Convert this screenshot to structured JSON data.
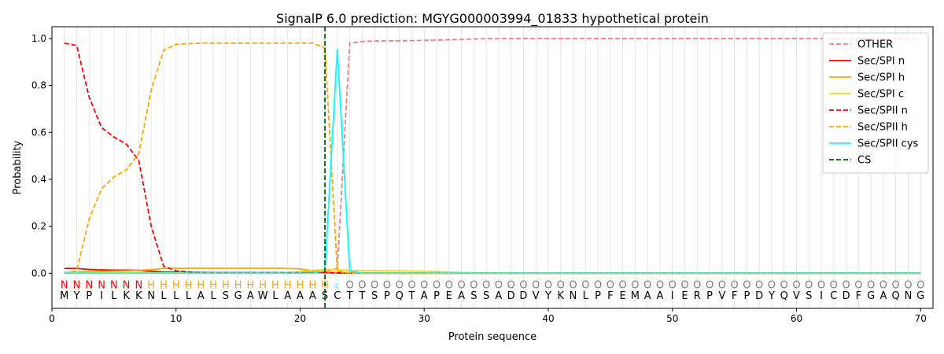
{
  "chart_data": {
    "type": "line",
    "title": "SignalP 6.0 prediction: MGYG000003994_01833 hypothetical protein",
    "xlabel": "Protein sequence",
    "ylabel": "Probability",
    "xlim": [
      0,
      71
    ],
    "ylim": [
      -0.15,
      1.05
    ],
    "x_ticks": [
      0,
      10,
      20,
      30,
      40,
      50,
      60,
      70
    ],
    "y_ticks": [
      0.0,
      0.2,
      0.4,
      0.6,
      0.8,
      1.0
    ],
    "x_tick_labels": [
      "0",
      "10",
      "20",
      "30",
      "40",
      "50",
      "60",
      "70"
    ],
    "y_tick_labels": [
      "0.0",
      "0.2",
      "0.4",
      "0.6",
      "0.8",
      "1.0"
    ],
    "grid": "vertical lines at each residue",
    "legend_position": "top-right",
    "sequence": [
      "M",
      "Y",
      "P",
      "I",
      "L",
      "K",
      "K",
      "N",
      "L",
      "L",
      "L",
      "A",
      "L",
      "S",
      "G",
      "A",
      "W",
      "L",
      "A",
      "A",
      "A",
      "S",
      "C",
      "T",
      "T",
      "S",
      "P",
      "Q",
      "T",
      "A",
      "P",
      "E",
      "A",
      "S",
      "S",
      "A",
      "D",
      "D",
      "V",
      "Y",
      "K",
      "N",
      "L",
      "P",
      "F",
      "E",
      "M",
      "A",
      "A",
      "I",
      "E",
      "R",
      "P",
      "V",
      "F",
      "P",
      "D",
      "Y",
      "Q",
      "V",
      "S",
      "I",
      "C",
      "D",
      "F",
      "G",
      "A",
      "Q",
      "N",
      "G"
    ],
    "labels": [
      "N",
      "N",
      "N",
      "N",
      "N",
      "N",
      "N",
      "H",
      "H",
      "H",
      "H",
      "H",
      "H",
      "H",
      "H",
      "H",
      "H",
      "H",
      "H",
      "H",
      "H",
      "H",
      "C",
      "O",
      "O",
      "O",
      "O",
      "O",
      "O",
      "O",
      "O",
      "O",
      "O",
      "O",
      "O",
      "O",
      "O",
      "O",
      "O",
      "O",
      "O",
      "O",
      "O",
      "O",
      "O",
      "O",
      "O",
      "O",
      "O",
      "O",
      "O",
      "O",
      "O",
      "O",
      "O",
      "O",
      "O",
      "O",
      "O",
      "O",
      "O",
      "O",
      "O",
      "O",
      "O",
      "O",
      "O",
      "O",
      "O",
      "O"
    ],
    "label_colors": {
      "N": "#ff0000",
      "H": "#ffa500",
      "C": "#00ffff",
      "O": "#808080"
    },
    "cleavage_site": 22,
    "series": [
      {
        "name": "OTHER",
        "color": "#f08080",
        "dash": "dashed",
        "values": [
          0.002,
          0.002,
          0.002,
          0.002,
          0.002,
          0.002,
          0.002,
          0.002,
          0.002,
          0.002,
          0.002,
          0.002,
          0.002,
          0.002,
          0.002,
          0.002,
          0.002,
          0.002,
          0.002,
          0.002,
          0.002,
          0.005,
          0.02,
          0.98,
          0.987,
          0.989,
          0.99,
          0.99,
          0.991,
          0.992,
          0.993,
          0.995,
          0.996,
          0.998,
          0.999,
          0.999,
          1.0,
          1.0,
          1.0,
          1.0,
          1.0,
          1.0,
          1.0,
          1.0,
          1.0,
          1.0,
          1.0,
          1.0,
          1.0,
          1.0,
          1.0,
          1.0,
          1.0,
          1.0,
          1.0,
          1.0,
          1.0,
          1.0,
          1.0,
          1.0,
          1.0,
          1.0,
          1.0,
          1.0,
          1.0,
          1.0,
          1.0,
          1.0,
          1.0,
          1.0
        ]
      },
      {
        "name": "Sec/SPI n",
        "color": "#ff0000",
        "dash": "solid",
        "values": [
          0.02,
          0.02,
          0.016,
          0.014,
          0.013,
          0.013,
          0.012,
          0.008,
          0.005,
          0.004,
          0.003,
          0.003,
          0.002,
          0.002,
          0.002,
          0.002,
          0.002,
          0.002,
          0.002,
          0.002,
          0.002,
          0.002,
          0.001,
          0.0,
          0.0,
          0.0,
          0.0,
          0.0,
          0.0,
          0.0,
          0.0,
          0.0,
          0.0,
          0.0,
          0.0,
          0.0,
          0.0,
          0.0,
          0.0,
          0.0,
          0.0,
          0.0,
          0.0,
          0.0,
          0.0,
          0.0,
          0.0,
          0.0,
          0.0,
          0.0,
          0.0,
          0.0,
          0.0,
          0.0,
          0.0,
          0.0,
          0.0,
          0.0,
          0.0,
          0.0,
          0.0,
          0.0,
          0.0,
          0.0,
          0.0,
          0.0,
          0.0,
          0.0,
          0.0,
          0.0
        ]
      },
      {
        "name": "Sec/SPI h",
        "color": "#ffa500",
        "dash": "solid",
        "values": [
          0.003,
          0.005,
          0.007,
          0.008,
          0.009,
          0.01,
          0.012,
          0.015,
          0.02,
          0.021,
          0.021,
          0.021,
          0.021,
          0.021,
          0.021,
          0.021,
          0.021,
          0.021,
          0.02,
          0.018,
          0.01,
          0.005,
          0.003,
          0.002,
          0.001,
          0.001,
          0.001,
          0.0,
          0.0,
          0.0,
          0.0,
          0.0,
          0.0,
          0.0,
          0.0,
          0.0,
          0.0,
          0.0,
          0.0,
          0.0,
          0.0,
          0.0,
          0.0,
          0.0,
          0.0,
          0.0,
          0.0,
          0.0,
          0.0,
          0.0,
          0.0,
          0.0,
          0.0,
          0.0,
          0.0,
          0.0,
          0.0,
          0.0,
          0.0,
          0.0,
          0.0,
          0.0,
          0.0,
          0.0,
          0.0,
          0.0,
          0.0,
          0.0,
          0.0,
          0.0
        ]
      },
      {
        "name": "Sec/SPI c",
        "color": "#ffd700",
        "dash": "solid",
        "values": [
          0.001,
          0.001,
          0.001,
          0.001,
          0.001,
          0.001,
          0.001,
          0.001,
          0.001,
          0.001,
          0.001,
          0.001,
          0.001,
          0.001,
          0.001,
          0.001,
          0.002,
          0.002,
          0.003,
          0.005,
          0.012,
          0.015,
          0.014,
          0.012,
          0.011,
          0.011,
          0.01,
          0.01,
          0.009,
          0.008,
          0.007,
          0.005,
          0.003,
          0.002,
          0.001,
          0.001,
          0.0,
          0.0,
          0.0,
          0.0,
          0.0,
          0.0,
          0.0,
          0.0,
          0.0,
          0.0,
          0.0,
          0.0,
          0.0,
          0.0,
          0.0,
          0.0,
          0.0,
          0.0,
          0.0,
          0.0,
          0.0,
          0.0,
          0.0,
          0.0,
          0.0,
          0.0,
          0.0,
          0.0,
          0.0,
          0.0,
          0.0,
          0.0,
          0.0,
          0.0
        ]
      },
      {
        "name": "Sec/SPII n",
        "color": "#ff0000",
        "dash": "dashed",
        "values": [
          0.98,
          0.97,
          0.75,
          0.62,
          0.58,
          0.55,
          0.48,
          0.2,
          0.03,
          0.01,
          0.005,
          0.003,
          0.002,
          0.002,
          0.002,
          0.002,
          0.002,
          0.002,
          0.002,
          0.002,
          0.002,
          0.002,
          0.001,
          0.0,
          0.0,
          0.0,
          0.0,
          0.0,
          0.0,
          0.0,
          0.0,
          0.0,
          0.0,
          0.0,
          0.0,
          0.0,
          0.0,
          0.0,
          0.0,
          0.0,
          0.0,
          0.0,
          0.0,
          0.0,
          0.0,
          0.0,
          0.0,
          0.0,
          0.0,
          0.0,
          0.0,
          0.0,
          0.0,
          0.0,
          0.0,
          0.0,
          0.0,
          0.0,
          0.0,
          0.0,
          0.0,
          0.0,
          0.0,
          0.0,
          0.0,
          0.0,
          0.0,
          0.0,
          0.0,
          0.0
        ]
      },
      {
        "name": "Sec/SPII h",
        "color": "#ffa500",
        "dash": "dashed",
        "values": [
          0.0,
          0.01,
          0.23,
          0.36,
          0.41,
          0.44,
          0.51,
          0.78,
          0.95,
          0.975,
          0.978,
          0.98,
          0.98,
          0.98,
          0.98,
          0.98,
          0.98,
          0.98,
          0.98,
          0.98,
          0.98,
          0.96,
          0.01,
          0.0,
          0.0,
          0.0,
          0.0,
          0.0,
          0.0,
          0.0,
          0.0,
          0.0,
          0.0,
          0.0,
          0.0,
          0.0,
          0.0,
          0.0,
          0.0,
          0.0,
          0.0,
          0.0,
          0.0,
          0.0,
          0.0,
          0.0,
          0.0,
          0.0,
          0.0,
          0.0,
          0.0,
          0.0,
          0.0,
          0.0,
          0.0,
          0.0,
          0.0,
          0.0,
          0.0,
          0.0,
          0.0,
          0.0,
          0.0,
          0.0,
          0.0,
          0.0,
          0.0,
          0.0,
          0.0,
          0.0
        ]
      },
      {
        "name": "Sec/SPII cys",
        "color": "#00ffff",
        "dash": "solid",
        "values": [
          0.0,
          0.0,
          0.0,
          0.0,
          0.0,
          0.0,
          0.0,
          0.0,
          0.0,
          0.0,
          0.0,
          0.0,
          0.0,
          0.0,
          0.0,
          0.0,
          0.0,
          0.0,
          0.0,
          0.0,
          0.0,
          0.01,
          0.955,
          0.01,
          0.0,
          0.0,
          0.0,
          0.0,
          0.0,
          0.0,
          0.0,
          0.0,
          0.0,
          0.0,
          0.0,
          0.0,
          0.0,
          0.0,
          0.0,
          0.0,
          0.0,
          0.0,
          0.0,
          0.0,
          0.0,
          0.0,
          0.0,
          0.0,
          0.0,
          0.0,
          0.0,
          0.0,
          0.0,
          0.0,
          0.0,
          0.0,
          0.0,
          0.0,
          0.0,
          0.0,
          0.0,
          0.0,
          0.0,
          0.0,
          0.0,
          0.0,
          0.0,
          0.0,
          0.0,
          0.0
        ]
      }
    ],
    "cs_series": {
      "name": "CS",
      "color": "#006400",
      "dash": "dashed"
    }
  }
}
